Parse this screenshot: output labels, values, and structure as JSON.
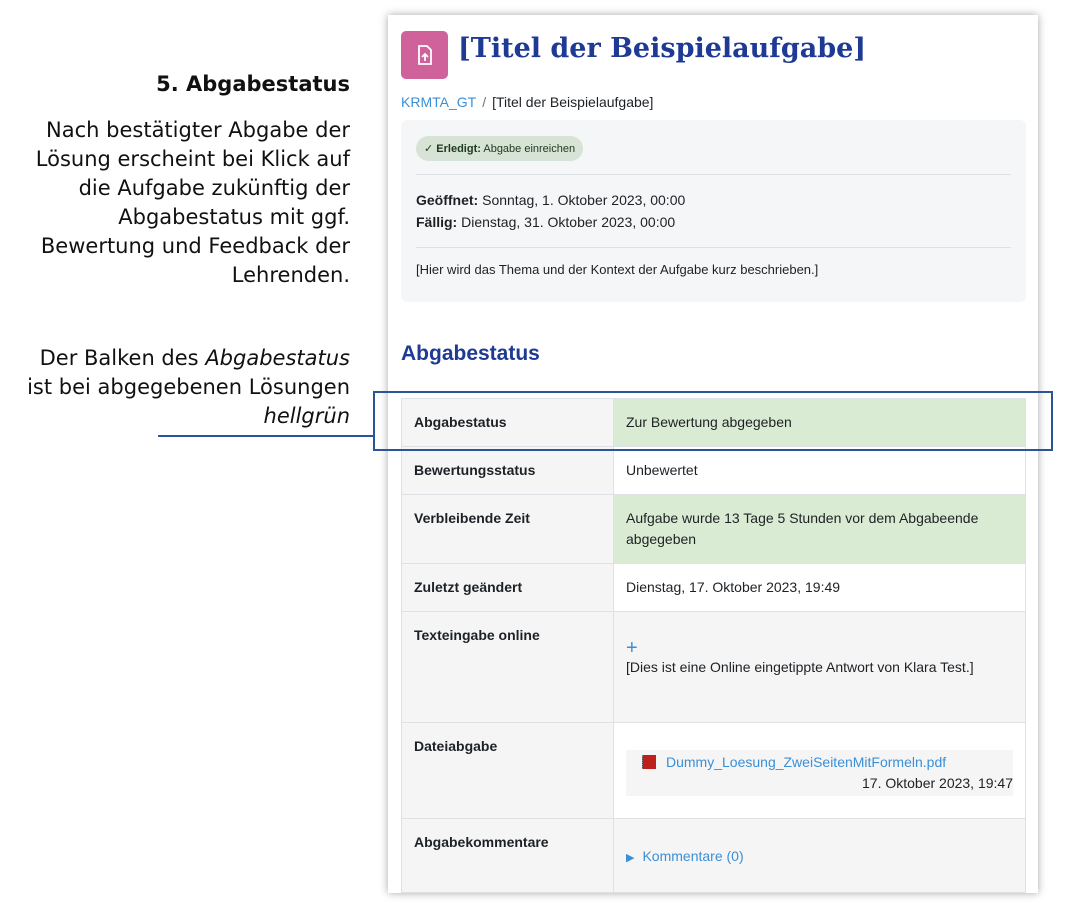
{
  "annotation": {
    "title": "5. Abgabestatus",
    "body": "Nach bestätigter Abgabe der Lösung erscheint bei Klick auf die Aufgabe zukünftig der Abgabestatus mit ggf. Bewertung und Feedback der Lehrenden.",
    "note_part1": "Der Balken des ",
    "note_italic1": "Abgabestatus",
    "note_part2": " ist bei abgegebenen Lösungen ",
    "note_italic2": "hellgrün",
    "highlight_color": "#2a5599"
  },
  "page": {
    "title": "[Titel der Beispielaufgabe]",
    "icon": "assignment-upload-icon",
    "accent": "#d0629b",
    "breadcrumb": [
      {
        "label": "KRMTA_GT"
      },
      {
        "label": "[Titel der Beispielaufgabe]"
      }
    ],
    "completion": {
      "label": "Erledigt:",
      "text": "Abgabe einreichen"
    },
    "opened_label": "Geöffnet:",
    "opened": "Sonntag, 1. Oktober 2023, 00:00",
    "due_label": "Fällig:",
    "due": "Dienstag, 31. Oktober 2023, 00:00",
    "description": "[Hier wird das Thema und der Kontext der Aufgabe kurz beschrieben.]"
  },
  "status": {
    "heading": "Abgabestatus",
    "green": "#d9ecd3",
    "rows": [
      {
        "label": "Abgabestatus",
        "value": "Zur Bewertung abgegeben"
      },
      {
        "label": "Bewertungsstatus",
        "value": "Unbewertet"
      },
      {
        "label": "Verbleibende Zeit",
        "value": "Aufgabe wurde 13 Tage 5 Stunden vor dem Abgabeende abgegeben"
      },
      {
        "label": "Zuletzt geändert",
        "value": "Dienstag, 17. Oktober 2023, 19:49"
      },
      {
        "label": "Texteingabe online",
        "value": "[Dies ist eine Online eingetippte Antwort von Klara Test.]"
      },
      {
        "label": "Dateiabgabe",
        "file": "Dummy_Loesung_ZweiSeitenMitFormeln.pdf",
        "file_date": "17. Oktober 2023, 19:47"
      },
      {
        "label": "Abgabekommentare",
        "value": "Kommentare (0)"
      }
    ]
  }
}
